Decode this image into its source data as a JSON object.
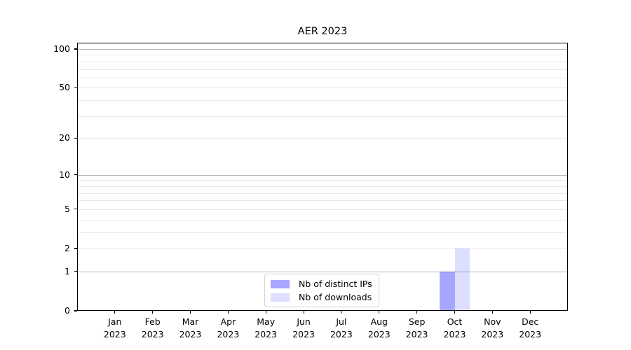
{
  "figure": {
    "background": "#ffffff"
  },
  "chart_data": {
    "type": "bar",
    "title": "AER 2023",
    "categories": [
      "Jan 2023",
      "Feb 2023",
      "Mar 2023",
      "Apr 2023",
      "May 2023",
      "Jun 2023",
      "Jul 2023",
      "Aug 2023",
      "Sep 2023",
      "Oct 2023",
      "Nov 2023",
      "Dec 2023"
    ],
    "category_months": [
      "Jan",
      "Feb",
      "Mar",
      "Apr",
      "May",
      "Jun",
      "Jul",
      "Aug",
      "Sep",
      "Oct",
      "Nov",
      "Dec"
    ],
    "category_year": "2023",
    "series": [
      {
        "name": "Nb of distinct IPs",
        "color": "#0000ff59",
        "values": [
          0,
          0,
          0,
          0,
          0,
          0,
          0,
          0,
          0,
          1,
          0,
          0
        ]
      },
      {
        "name": "Nb of downloads",
        "color": "#0000ff21",
        "values": [
          0,
          0,
          0,
          0,
          0,
          0,
          0,
          0,
          0,
          2,
          0,
          0
        ]
      }
    ],
    "xlabel": "",
    "ylabel": "",
    "y_scale": "log1p",
    "ylim": [
      0,
      111.8
    ],
    "yticks_labeled": [
      0,
      1,
      2,
      5,
      10,
      20,
      50,
      100
    ],
    "gridlines_major": [
      1,
      10,
      100
    ],
    "gridlines_minor": [
      2,
      3,
      4,
      5,
      6,
      7,
      8,
      9,
      20,
      30,
      40,
      50,
      60,
      70,
      80,
      90
    ],
    "grid": true,
    "legend_position": "lower center"
  },
  "colors": {
    "major_grid": "#b4b4b4",
    "minor_grid": "#e8e8e8",
    "spine": "#000000",
    "text": "#000000",
    "legend_border": "#d2d2d2"
  }
}
